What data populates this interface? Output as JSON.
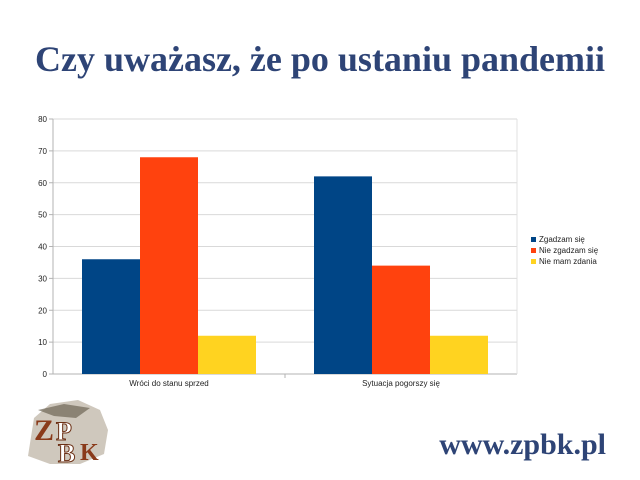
{
  "slide": {
    "title": "Czy uważasz, że po ustaniu pandemii",
    "footer_url": "www.zpbk.pl"
  },
  "logo": {
    "text": "ZPBK",
    "icon": "zpbk-logo-icon"
  },
  "chart_data": {
    "type": "bar",
    "categories": [
      "Wróci do stanu sprzed",
      "Sytuacja pogorszy się"
    ],
    "series": [
      {
        "name": "Zgadzam się",
        "values": [
          36,
          62
        ],
        "color": "#004586"
      },
      {
        "name": "Nie zgadzam się",
        "values": [
          68,
          34
        ],
        "color": "#ff420e"
      },
      {
        "name": "Nie mam zdania",
        "values": [
          12,
          12
        ],
        "color": "#ffd320"
      }
    ],
    "ylim": [
      0,
      80
    ],
    "yticks": [
      0,
      10,
      20,
      30,
      40,
      50,
      60,
      70,
      80
    ],
    "grid": true,
    "legend": "right",
    "title": "",
    "xlabel": "",
    "ylabel": ""
  }
}
